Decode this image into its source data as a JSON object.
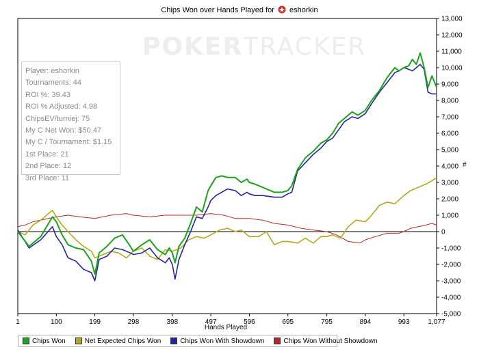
{
  "title_prefix": "Chips Won over Hands Played for",
  "player_name": "eshorkin",
  "watermark": {
    "part1": "POKER",
    "part2": "TRACKER"
  },
  "stats": [
    "Player: eshorkin",
    "Tournaments: 44",
    "ROI %: 39.43",
    "ROI % Adjusted: 4.98",
    "ChipsEV/turniej: 75",
    "My C Net Won: $50.47",
    "My C / Tournament: $1.15",
    "1st Place: 21",
    "2nd Place: 12",
    "3rd Place: 11"
  ],
  "colors": {
    "green": "#1aa31a",
    "olive": "#b3a81a",
    "navy": "#2323a6",
    "red": "#b42828"
  },
  "chart_data": {
    "type": "line",
    "xlabel": "Hands Played",
    "y_unit": "#",
    "xlim": [
      1,
      1077
    ],
    "ylim": [
      -5000,
      13000
    ],
    "x_ticks": [
      "1",
      "100",
      "199",
      "298",
      "398",
      "497",
      "596",
      "695",
      "795",
      "894",
      "993",
      "1,077"
    ],
    "x_tick_values": [
      1,
      100,
      199,
      298,
      398,
      497,
      596,
      695,
      795,
      894,
      993,
      1077
    ],
    "y_ticks": [
      "13,000",
      "12,000",
      "11,000",
      "10,000",
      "9,000",
      "8,000",
      "7,000",
      "6,000",
      "5,000",
      "4,000",
      "3,000",
      "2,000",
      "1,000",
      "0",
      "-1,000",
      "-2,000",
      "-3,000",
      "-4,000",
      "-5,000"
    ],
    "y_tick_values": [
      13000,
      12000,
      11000,
      10000,
      9000,
      8000,
      7000,
      6000,
      5000,
      4000,
      3000,
      2000,
      1000,
      0,
      -1000,
      -2000,
      -3000,
      -4000,
      -5000
    ],
    "series": [
      {
        "name": "Chips Won",
        "color": "#1aa31a",
        "x": [
          1,
          30,
          60,
          75,
          90,
          100,
          115,
          130,
          150,
          170,
          190,
          199,
          210,
          230,
          250,
          270,
          290,
          298,
          320,
          340,
          360,
          380,
          390,
          398,
          405,
          415,
          430,
          445,
          460,
          475,
          490,
          497,
          510,
          525,
          540,
          560,
          575,
          590,
          596,
          610,
          630,
          660,
          680,
          695,
          705,
          720,
          740,
          760,
          780,
          795,
          810,
          825,
          840,
          860,
          875,
          894,
          910,
          930,
          950,
          970,
          980,
          993,
          1005,
          1015,
          1025,
          1035,
          1045,
          1055,
          1065,
          1077
        ],
        "y": [
          0,
          -900,
          -300,
          300,
          900,
          600,
          -200,
          -800,
          -1000,
          -1100,
          -1800,
          -2600,
          -1300,
          -900,
          -400,
          -200,
          -900,
          -1200,
          -800,
          -500,
          -1100,
          -1400,
          -1000,
          -1300,
          -1900,
          -900,
          -400,
          500,
          1500,
          1200,
          2500,
          2800,
          3300,
          3400,
          3300,
          3300,
          3000,
          3200,
          3000,
          2900,
          2700,
          2400,
          2400,
          2500,
          2800,
          3800,
          4500,
          4900,
          5400,
          5600,
          6000,
          6600,
          6900,
          7300,
          7100,
          7400,
          8000,
          8600,
          9400,
          10000,
          9800,
          10000,
          10100,
          10500,
          10200,
          10900,
          10000,
          8800,
          9500,
          8800
        ]
      },
      {
        "name": "Net Expected Chips Won",
        "color": "#b3a81a",
        "x": [
          1,
          20,
          40,
          60,
          75,
          90,
          100,
          115,
          130,
          150,
          170,
          190,
          199,
          220,
          240,
          260,
          280,
          298,
          320,
          340,
          360,
          380,
          398,
          420,
          440,
          460,
          480,
          497,
          520,
          540,
          560,
          575,
          596,
          620,
          640,
          660,
          680,
          695,
          720,
          740,
          760,
          780,
          795,
          810,
          830,
          850,
          870,
          894,
          910,
          930,
          950,
          970,
          993,
          1010,
          1030,
          1050,
          1065,
          1077
        ],
        "y": [
          0,
          -200,
          400,
          700,
          1000,
          1300,
          900,
          400,
          0,
          -500,
          -900,
          -1200,
          -1600,
          -1400,
          -1200,
          -1300,
          -1600,
          -1200,
          -1000,
          -1500,
          -1700,
          -1100,
          -1200,
          -1000,
          -500,
          -300,
          -400,
          -200,
          100,
          200,
          0,
          100,
          -300,
          -300,
          0,
          -800,
          -600,
          -600,
          -700,
          -400,
          -700,
          -300,
          -300,
          -200,
          -400,
          300,
          700,
          600,
          1000,
          1600,
          1800,
          1700,
          2200,
          2500,
          2700,
          2900,
          3100,
          3300
        ]
      },
      {
        "name": "Chips Won With Showdown",
        "color": "#2323a6",
        "x": [
          1,
          30,
          60,
          75,
          90,
          100,
          115,
          130,
          150,
          170,
          190,
          199,
          210,
          230,
          250,
          270,
          290,
          298,
          320,
          340,
          360,
          380,
          390,
          398,
          405,
          415,
          430,
          445,
          460,
          475,
          490,
          497,
          510,
          525,
          540,
          560,
          575,
          590,
          596,
          610,
          630,
          660,
          680,
          695,
          705,
          720,
          740,
          760,
          780,
          795,
          810,
          825,
          840,
          860,
          875,
          894,
          910,
          930,
          950,
          970,
          980,
          993,
          1005,
          1015,
          1025,
          1035,
          1045,
          1055,
          1065,
          1077
        ],
        "y": [
          100,
          -1000,
          -500,
          -100,
          300,
          -300,
          -800,
          -1600,
          -1800,
          -2300,
          -2500,
          -3000,
          -1700,
          -1500,
          -1000,
          -1100,
          -1300,
          -1400,
          -1300,
          -1000,
          -1600,
          -1900,
          -1600,
          -2000,
          -2900,
          -1700,
          -800,
          0,
          900,
          800,
          1500,
          1900,
          2200,
          2400,
          2600,
          2500,
          2200,
          2400,
          2300,
          2200,
          2200,
          2100,
          2100,
          2300,
          2400,
          3700,
          4200,
          4700,
          5100,
          5500,
          5700,
          6200,
          6700,
          7000,
          6900,
          7200,
          7800,
          8500,
          9100,
          9700,
          9800,
          10000,
          9900,
          9800,
          10000,
          10200,
          9900,
          8500,
          8400,
          8400
        ]
      },
      {
        "name": "Chips Won Without Showdown",
        "color": "#b42828",
        "x": [
          1,
          20,
          40,
          60,
          80,
          100,
          130,
          160,
          199,
          240,
          280,
          298,
          340,
          380,
          398,
          430,
          460,
          497,
          530,
          560,
          596,
          630,
          660,
          695,
          730,
          760,
          795,
          820,
          850,
          880,
          894,
          920,
          950,
          980,
          993,
          1010,
          1030,
          1050,
          1065,
          1077
        ],
        "y": [
          300,
          400,
          600,
          700,
          800,
          900,
          1000,
          900,
          800,
          1000,
          1100,
          1000,
          900,
          1000,
          1000,
          1000,
          1000,
          1100,
          1000,
          800,
          800,
          700,
          500,
          400,
          200,
          100,
          0,
          -200,
          -600,
          -700,
          -500,
          -300,
          -100,
          -100,
          0,
          200,
          300,
          400,
          500,
          400
        ]
      }
    ]
  }
}
